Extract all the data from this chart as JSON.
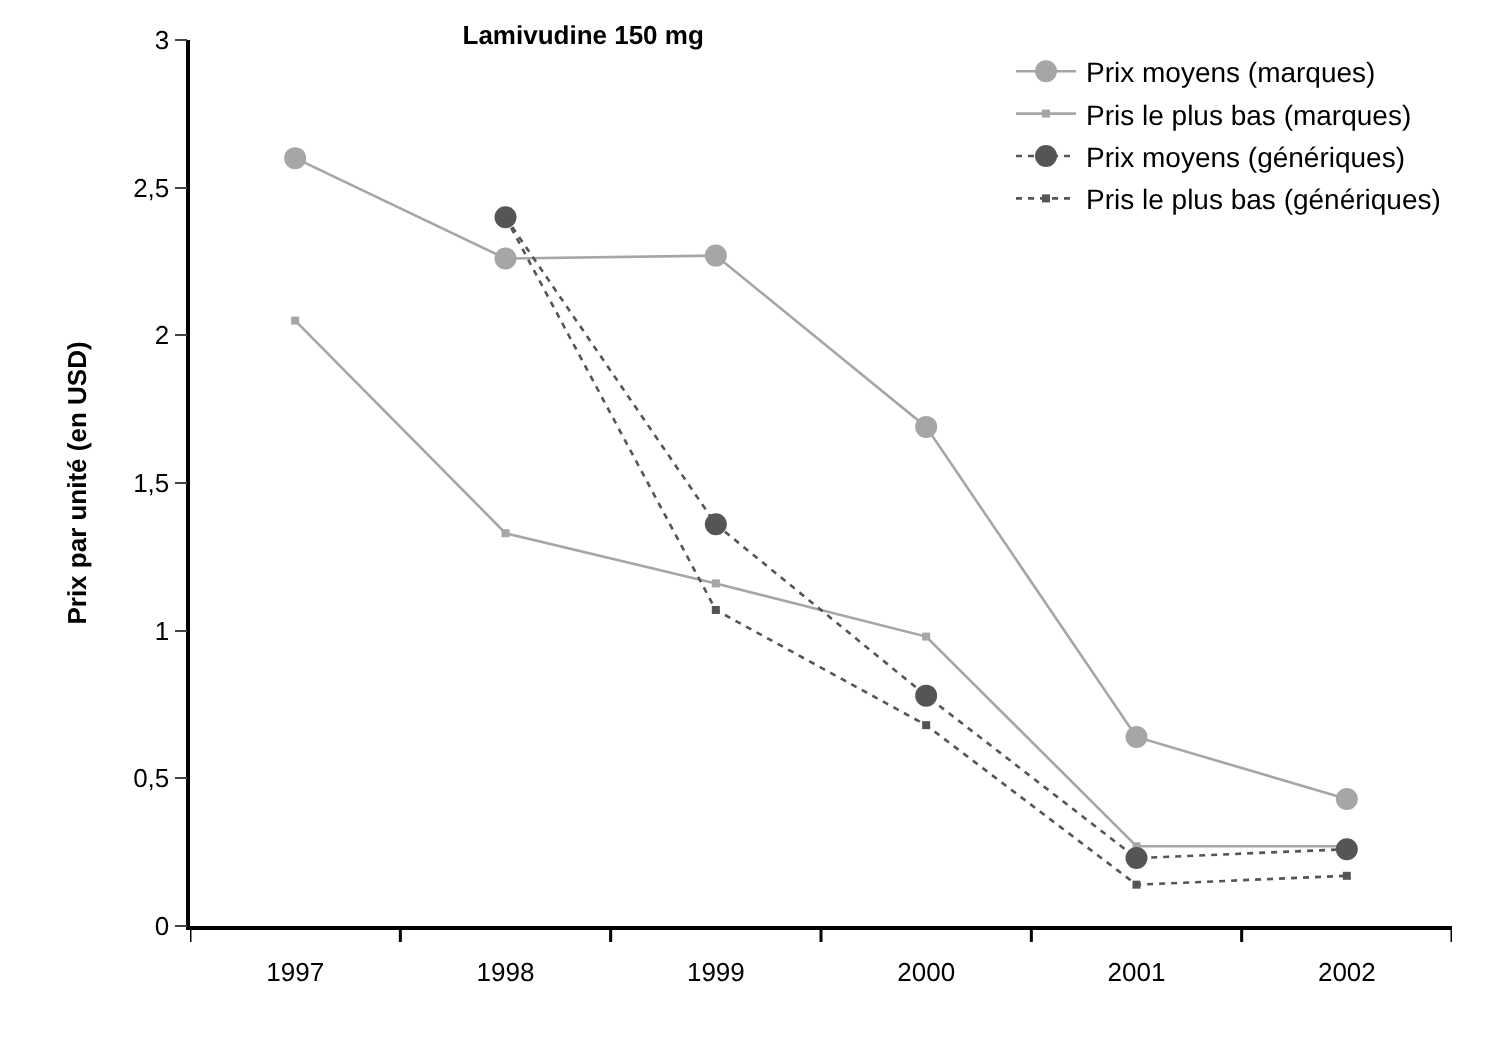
{
  "chart_data": {
    "type": "line",
    "title": "Lamivudine 150 mg",
    "ylabel": "Prix par unité (en USD)",
    "categories": [
      "1997",
      "1998",
      "1999",
      "2000",
      "2001",
      "2002"
    ],
    "series": [
      {
        "name": "Prix moyens (marques)",
        "color": "#a6a6a6",
        "marker": "circle",
        "line_style": "solid",
        "values": [
          2.6,
          2.26,
          2.27,
          1.69,
          0.64,
          0.43
        ]
      },
      {
        "name": "Pris le plus bas (marques)",
        "color": "#a6a6a6",
        "marker": "square",
        "line_style": "solid",
        "values": [
          2.05,
          1.33,
          1.16,
          0.98,
          0.27,
          0.27
        ]
      },
      {
        "name": "Prix moyens (génériques)",
        "color": "#555555",
        "marker": "circle",
        "line_style": "dotted",
        "values": [
          null,
          2.4,
          1.36,
          0.78,
          0.23,
          0.26
        ]
      },
      {
        "name": "Pris le plus bas (génériques)",
        "color": "#555555",
        "marker": "square",
        "line_style": "dotted",
        "values": [
          null,
          2.4,
          1.07,
          0.68,
          0.14,
          0.17
        ]
      }
    ],
    "ylim": [
      0,
      3
    ],
    "yticks": [
      0,
      {
        "value": 0.5,
        "label": "0,5"
      },
      1,
      {
        "value": 1.5,
        "label": "1,5"
      },
      2,
      {
        "value": 2.5,
        "label": "2,5"
      },
      3
    ],
    "grid": false,
    "legend": "top right"
  }
}
